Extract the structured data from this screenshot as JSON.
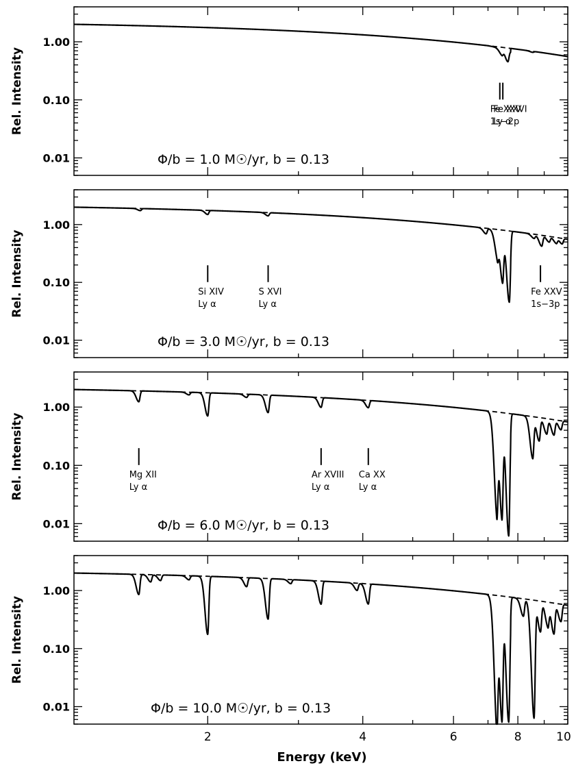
{
  "figure": {
    "xlabel": "Energy (keV)",
    "ylabel": "Rel. Intensity",
    "xticks": [
      "2",
      "4",
      "6",
      "8",
      "10"
    ],
    "yticks": [
      "1.00",
      "0.10",
      "0.01"
    ]
  },
  "chart_data": [
    {
      "type": "line",
      "title": "",
      "panel_text": "Φ/b = 1.0 M☉/yr, b = 0.13",
      "xlabel": "",
      "ylabel": "Rel. Intensity",
      "xlim": [
        1.1,
        10
      ],
      "ylim": [
        0.005,
        4
      ],
      "yscale": "log",
      "continuum": {
        "amplitude": 2.0,
        "slope": -0.0156
      },
      "edge": {
        "from": 6.95,
        "to": 7.75,
        "drop": 0.87
      },
      "lines": [
        {
          "ion": "Fe XXV 1s-2p",
          "energy": 7.45,
          "depth": 0.2
        },
        {
          "ion": "Fe XXVI Ly α",
          "energy": 7.65,
          "depth": 0.35
        },
        {
          "ion": "",
          "energy": 8.55,
          "depth": 0.04
        }
      ],
      "annotations": [
        {
          "line1": "Fe XXV",
          "line2": "1s−2p",
          "energy": 7.38
        },
        {
          "line1": "Fe XXVI",
          "line2": "Ly α",
          "energy": 7.48
        }
      ]
    },
    {
      "type": "line",
      "title": "",
      "panel_text": "Φ/b = 3.0 M☉/yr, b = 0.13",
      "xlabel": "",
      "ylabel": "Rel. Intensity",
      "xlim": [
        1.1,
        10
      ],
      "ylim": [
        0.005,
        4
      ],
      "yscale": "log",
      "continuum": {
        "amplitude": 2.0,
        "slope": -0.0156
      },
      "edge": {
        "from": 6.95,
        "to": 7.75,
        "drop": 0.82
      },
      "lines": [
        {
          "ion": "",
          "energy": 1.48,
          "depth": 0.08
        },
        {
          "ion": "Si XIV Ly α",
          "energy": 2.0,
          "depth": 0.15
        },
        {
          "ion": "S XVI Ly α",
          "energy": 2.62,
          "depth": 0.12
        },
        {
          "ion": "",
          "energy": 6.94,
          "depth": 0.2
        },
        {
          "ion": "",
          "energy": 7.3,
          "depth": 0.6
        },
        {
          "ion": "",
          "energy": 7.47,
          "depth": 0.85
        },
        {
          "ion": "",
          "energy": 7.7,
          "depth": 0.93
        },
        {
          "ion": "",
          "energy": 8.6,
          "depth": 0.15
        },
        {
          "ion": "Fe XXV 1s-3p",
          "energy": 8.9,
          "depth": 0.35
        },
        {
          "ion": "",
          "energy": 9.2,
          "depth": 0.2
        },
        {
          "ion": "",
          "energy": 9.5,
          "depth": 0.2
        },
        {
          "ion": "",
          "energy": 9.75,
          "depth": 0.2
        }
      ],
      "annotations": [
        {
          "line1": "Si XIV",
          "line2": "Ly α",
          "energy": 2.0
        },
        {
          "line1": "S XVI",
          "line2": "Ly α",
          "energy": 2.62
        },
        {
          "line1": "Fe XXV",
          "line2": "1s−3p",
          "energy": 8.85
        }
      ]
    },
    {
      "type": "line",
      "title": "",
      "panel_text": "Φ/b = 6.0 M☉/yr, b = 0.13",
      "xlabel": "",
      "ylabel": "Rel. Intensity",
      "xlim": [
        1.1,
        10
      ],
      "ylim": [
        0.005,
        4
      ],
      "yscale": "log",
      "continuum": {
        "amplitude": 2.0,
        "slope": -0.0156
      },
      "edge": {
        "from": 6.95,
        "to": 7.75,
        "drop": 0.76
      },
      "lines": [
        {
          "ion": "Mg XII Ly α",
          "energy": 1.47,
          "depth": 0.35
        },
        {
          "ion": "",
          "energy": 1.84,
          "depth": 0.1
        },
        {
          "ion": "",
          "energy": 2.0,
          "depth": 0.6
        },
        {
          "ion": "",
          "energy": 2.38,
          "depth": 0.12
        },
        {
          "ion": "",
          "energy": 2.62,
          "depth": 0.5
        },
        {
          "ion": "Ar XVIII Ly α",
          "energy": 3.32,
          "depth": 0.32
        },
        {
          "ion": "Ca XX Ly α",
          "energy": 4.1,
          "depth": 0.25
        },
        {
          "ion": "",
          "energy": 7.28,
          "depth": 0.97
        },
        {
          "ion": "",
          "energy": 7.45,
          "depth": 0.98
        },
        {
          "ion": "",
          "energy": 7.68,
          "depth": 0.99
        },
        {
          "ion": "",
          "energy": 8.55,
          "depth": 0.8
        },
        {
          "ion": "",
          "energy": 8.8,
          "depth": 0.6
        },
        {
          "ion": "",
          "energy": 9.1,
          "depth": 0.45
        },
        {
          "ion": "",
          "energy": 9.4,
          "depth": 0.45
        },
        {
          "ion": "",
          "energy": 9.7,
          "depth": 0.3
        }
      ],
      "annotations": [
        {
          "line1": "Mg XII",
          "line2": "Ly α",
          "energy": 1.47
        },
        {
          "line1": "Ar XVIII",
          "line2": "Ly α",
          "energy": 3.32
        },
        {
          "line1": "Ca XX",
          "line2": "Ly α",
          "energy": 4.1
        }
      ]
    },
    {
      "type": "line",
      "title": "",
      "panel_text": "Φ/b = 10.0 M☉/yr, b = 0.13",
      "xlabel": "Energy (keV)",
      "ylabel": "Rel. Intensity",
      "xlim": [
        1.1,
        10
      ],
      "ylim": [
        0.005,
        4
      ],
      "yscale": "log",
      "continuum": {
        "amplitude": 2.0,
        "slope": -0.0156
      },
      "edge": {
        "from": 6.95,
        "to": 7.75,
        "drop": 0.65
      },
      "lines": [
        {
          "ion": "",
          "energy": 1.47,
          "depth": 0.55
        },
        {
          "ion": "",
          "energy": 1.55,
          "depth": 0.25
        },
        {
          "ion": "",
          "energy": 1.62,
          "depth": 0.2
        },
        {
          "ion": "",
          "energy": 1.84,
          "depth": 0.15
        },
        {
          "ion": "",
          "energy": 2.0,
          "depth": 0.9
        },
        {
          "ion": "",
          "energy": 2.38,
          "depth": 0.3
        },
        {
          "ion": "",
          "energy": 2.62,
          "depth": 0.8
        },
        {
          "ion": "",
          "energy": 2.9,
          "depth": 0.15
        },
        {
          "ion": "",
          "energy": 3.32,
          "depth": 0.6
        },
        {
          "ion": "",
          "energy": 3.9,
          "depth": 0.25
        },
        {
          "ion": "",
          "energy": 4.1,
          "depth": 0.55
        },
        {
          "ion": "",
          "energy": 7.28,
          "depth": 0.99
        },
        {
          "ion": "",
          "energy": 7.45,
          "depth": 0.99
        },
        {
          "ion": "",
          "energy": 7.68,
          "depth": 0.99
        },
        {
          "ion": "",
          "energy": 8.2,
          "depth": 0.5
        },
        {
          "ion": "",
          "energy": 8.6,
          "depth": 0.99
        },
        {
          "ion": "",
          "energy": 8.85,
          "depth": 0.7
        },
        {
          "ion": "",
          "energy": 9.15,
          "depth": 0.6
        },
        {
          "ion": "",
          "energy": 9.4,
          "depth": 0.7
        },
        {
          "ion": "",
          "energy": 9.7,
          "depth": 0.5
        }
      ],
      "annotations": []
    }
  ]
}
